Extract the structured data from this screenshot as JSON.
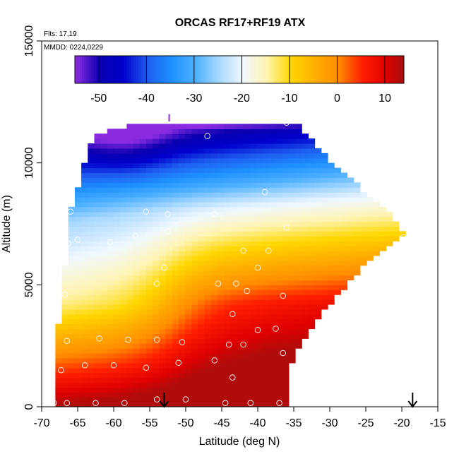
{
  "chart_data": {
    "type": "heatmap",
    "title": "ORCAS RF17+RF19 ATX",
    "xlabel": "Latitude (deg N)",
    "ylabel": "Altitude (m)",
    "xlim": [
      -70,
      -15
    ],
    "ylim": [
      0,
      15000
    ],
    "x_ticks": [
      -70,
      -65,
      -60,
      -55,
      -50,
      -45,
      -40,
      -35,
      -30,
      -25,
      -20,
      -15
    ],
    "y_ticks": [
      0,
      5000,
      10000,
      15000
    ],
    "annotations": {
      "flights": "Flts: 17,19",
      "dates": "MMDD: 0224,0229"
    },
    "colorbar": {
      "range": [
        -55,
        14
      ],
      "ticks": [
        -50,
        -40,
        -30,
        -20,
        -10,
        0,
        10
      ],
      "stops": [
        {
          "value": -55,
          "color": "#8a2be2"
        },
        {
          "value": -50,
          "color": "#0a00b0"
        },
        {
          "value": -45,
          "color": "#0000cd"
        },
        {
          "value": -40,
          "color": "#1e5ef0"
        },
        {
          "value": -35,
          "color": "#1e90ff"
        },
        {
          "value": -30,
          "color": "#4cb0ff"
        },
        {
          "value": -25,
          "color": "#a8d8ff"
        },
        {
          "value": -20,
          "color": "#f0f8ff"
        },
        {
          "value": -15,
          "color": "#fff4b0"
        },
        {
          "value": -10,
          "color": "#ffd700"
        },
        {
          "value": -5,
          "color": "#ffb000"
        },
        {
          "value": 0,
          "color": "#ff8c00"
        },
        {
          "value": 5,
          "color": "#ff2000"
        },
        {
          "value": 10,
          "color": "#e00000"
        },
        {
          "value": 14,
          "color": "#a01010"
        }
      ]
    },
    "domain_outline": [
      [
        -68.5,
        0
      ],
      [
        -36,
        0
      ],
      [
        -36,
        1500
      ],
      [
        -32,
        3500
      ],
      [
        -24,
        6200
      ],
      [
        -19.5,
        7000
      ],
      [
        -22,
        8000
      ],
      [
        -27,
        9300
      ],
      [
        -31,
        10400
      ],
      [
        -34,
        11500
      ],
      [
        -35,
        11700
      ],
      [
        -55,
        11700
      ],
      [
        -61,
        11300
      ],
      [
        -63,
        11000
      ],
      [
        -66,
        8000
      ],
      [
        -67,
        5000
      ],
      [
        -68.5,
        1500
      ]
    ],
    "sample_points": [
      [
        -68.3,
        150
      ],
      [
        -66.5,
        150
      ],
      [
        -62.5,
        150
      ],
      [
        -58.5,
        150
      ],
      [
        -54,
        300
      ],
      [
        -50,
        300
      ],
      [
        -44.5,
        150
      ],
      [
        -41,
        150
      ],
      [
        -37,
        150
      ],
      [
        -67.3,
        1500
      ],
      [
        -64,
        1700
      ],
      [
        -60,
        1700
      ],
      [
        -55.5,
        1600
      ],
      [
        -51,
        1800
      ],
      [
        -46,
        1900
      ],
      [
        -43.5,
        1200
      ],
      [
        -36.5,
        2200
      ],
      [
        -66.5,
        2700
      ],
      [
        -62,
        2800
      ],
      [
        -58,
        2750
      ],
      [
        -54,
        2750
      ],
      [
        -50.5,
        2650
      ],
      [
        -44,
        2550
      ],
      [
        -42,
        2550
      ],
      [
        -40,
        3150
      ],
      [
        -37.5,
        3200
      ],
      [
        -43.5,
        3800
      ],
      [
        -66.8,
        4600
      ],
      [
        -41.5,
        4750
      ],
      [
        -36.5,
        4550
      ],
      [
        -54,
        5050
      ],
      [
        -45.5,
        5050
      ],
      [
        -43,
        5050
      ],
      [
        -53,
        5700
      ],
      [
        -40,
        5700
      ],
      [
        -66.3,
        6700
      ],
      [
        -65,
        6850
      ],
      [
        -60.5,
        6750
      ],
      [
        -57,
        7000
      ],
      [
        -52.5,
        7200
      ],
      [
        -42,
        6400
      ],
      [
        -38.5,
        6400
      ],
      [
        -19.8,
        6950
      ],
      [
        -36,
        7350
      ],
      [
        -66,
        8000
      ],
      [
        -55.5,
        8000
      ],
      [
        -52.5,
        7900
      ],
      [
        -46,
        7900
      ],
      [
        -39,
        8800
      ],
      [
        -63,
        11250
      ],
      [
        -47,
        11100
      ],
      [
        -36,
        11650
      ]
    ],
    "arrows": [
      -53,
      -18.5
    ]
  }
}
